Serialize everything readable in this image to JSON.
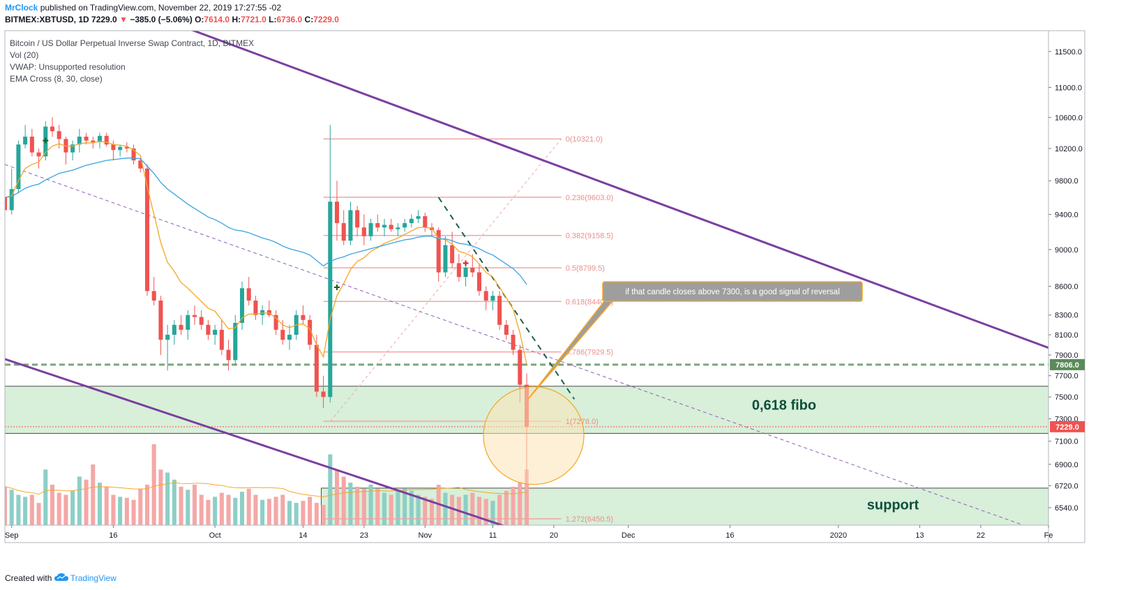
{
  "header": {
    "author": "MrClock",
    "published_text": "published on TradingView.com, November 22, 2019 17:27:55 -02",
    "symbol": "BITMEX:XBTUSD, 1D",
    "last": "7229.0",
    "change": "−385.0 (−5.06%)",
    "ohlc_labels": [
      "O:",
      "H:",
      "L:",
      "C:"
    ],
    "ohlc_values": [
      "7614.0",
      "7721.0",
      "6736.0",
      "7229.0"
    ]
  },
  "legend": {
    "title": "Bitcoin / US Dollar Perpetual Inverse Swap Contract, 1D, BITMEX",
    "vol": "Vol (20)",
    "vwap": "VWAP: Unsupported resolution",
    "ema": "EMA Cross (8, 30, close)"
  },
  "footer": {
    "created": "Created with",
    "brand": "TradingView"
  },
  "colors": {
    "up": "#26a69a",
    "down": "#ef5350",
    "ema_fast": "#f5a623",
    "ema_slow": "#3aa3e3",
    "channel": "#7b3fa0",
    "fib": "#f2a5a5",
    "zone": "#d8efd9",
    "dashed_level": "#7aa77a",
    "callout_bg": "#9e9e9e",
    "callout_border": "#f5a623"
  },
  "chart_data": {
    "type": "candlestick",
    "y_axis": {
      "scale": "log",
      "range": [
        6400,
        11800
      ],
      "ticks": [
        "11500.0",
        "11000.0",
        "10600.0",
        "10200.0",
        "9800.0",
        "9400.0",
        "9000.0",
        "8600.0",
        "8300.0",
        "8100.0",
        "7900.0",
        "7700.0",
        "7500.0",
        "7300.0",
        "7100.0",
        "6900.0",
        "6720.0",
        "6540.0"
      ],
      "tick_values": [
        11500,
        11000,
        10600,
        10200,
        9800,
        9400,
        9000,
        8600,
        8300,
        8100,
        7900,
        7700,
        7500,
        7300,
        7100,
        6900,
        6720,
        6540
      ]
    },
    "x_axis": {
      "start": "2019-08-31",
      "end": "2020-02-01",
      "labels": [
        {
          "date": "2019-09-01",
          "text": "Sep"
        },
        {
          "date": "2019-09-16",
          "text": "16"
        },
        {
          "date": "2019-10-01",
          "text": "Oct"
        },
        {
          "date": "2019-10-14",
          "text": "14"
        },
        {
          "date": "2019-10-23",
          "text": "23"
        },
        {
          "date": "2019-11-01",
          "text": "Nov"
        },
        {
          "date": "2019-11-11",
          "text": "11"
        },
        {
          "date": "2019-11-20",
          "text": "20"
        },
        {
          "date": "2019-12-01",
          "text": "Dec"
        },
        {
          "date": "2019-12-16",
          "text": "16"
        },
        {
          "date": "2020-01-01",
          "text": "2020"
        },
        {
          "date": "2020-01-13",
          "text": "13"
        },
        {
          "date": "2020-01-22",
          "text": "22"
        },
        {
          "date": "2020-02-01",
          "text": "Fe"
        }
      ]
    },
    "candles_start": "2019-08-31",
    "candles": [
      [
        9600,
        9650,
        9350,
        9450
      ],
      [
        9450,
        9950,
        9400,
        9700
      ],
      [
        9700,
        10300,
        9650,
        10250
      ],
      [
        10250,
        10500,
        10200,
        10350
      ],
      [
        10350,
        10450,
        10100,
        10150
      ],
      [
        10150,
        10200,
        9950,
        10100
      ],
      [
        10100,
        10550,
        10050,
        10480
      ],
      [
        10480,
        10600,
        10350,
        10420
      ],
      [
        10420,
        10500,
        10200,
        10320
      ],
      [
        10320,
        10350,
        10000,
        10150
      ],
      [
        10150,
        10300,
        10050,
        10250
      ],
      [
        10250,
        10450,
        10150,
        10350
      ],
      [
        10350,
        10400,
        10250,
        10300
      ],
      [
        10300,
        10350,
        10200,
        10280
      ],
      [
        10280,
        10400,
        10200,
        10360
      ],
      [
        10360,
        10400,
        10220,
        10250
      ],
      [
        10250,
        10300,
        10050,
        10180
      ],
      [
        10180,
        10250,
        10100,
        10220
      ],
      [
        10220,
        10280,
        10150,
        10200
      ],
      [
        10200,
        10250,
        10000,
        10050
      ],
      [
        10050,
        10100,
        9900,
        9950
      ],
      [
        9950,
        10000,
        8500,
        8550
      ],
      [
        8550,
        8700,
        8400,
        8450
      ],
      [
        8450,
        8500,
        7900,
        8050
      ],
      [
        8050,
        8200,
        7750,
        8100
      ],
      [
        8100,
        8250,
        8000,
        8200
      ],
      [
        8200,
        8300,
        8100,
        8150
      ],
      [
        8150,
        8350,
        8050,
        8300
      ],
      [
        8300,
        8400,
        8200,
        8280
      ],
      [
        8280,
        8350,
        8150,
        8200
      ],
      [
        8200,
        8250,
        8050,
        8100
      ],
      [
        8100,
        8200,
        8000,
        8150
      ],
      [
        8150,
        8250,
        7900,
        7950
      ],
      [
        7950,
        8050,
        7750,
        7850
      ],
      [
        7850,
        8300,
        7800,
        8220
      ],
      [
        8220,
        8650,
        8150,
        8580
      ],
      [
        8580,
        8700,
        8400,
        8450
      ],
      [
        8450,
        8500,
        8250,
        8300
      ],
      [
        8300,
        8400,
        8200,
        8350
      ],
      [
        8350,
        8450,
        8280,
        8300
      ],
      [
        8300,
        8350,
        8100,
        8150
      ],
      [
        8150,
        8250,
        8000,
        8050
      ],
      [
        8050,
        8200,
        7950,
        8100
      ],
      [
        8100,
        8350,
        8050,
        8300
      ],
      [
        8300,
        8400,
        8200,
        8250
      ],
      [
        8250,
        8300,
        7950,
        8000
      ],
      [
        8000,
        8100,
        7500,
        7550
      ],
      [
        7550,
        7700,
        7400,
        7500
      ],
      [
        7500,
        10500,
        7450,
        9550
      ],
      [
        9550,
        9800,
        9100,
        9300
      ],
      [
        9300,
        9450,
        9050,
        9100
      ],
      [
        9100,
        9550,
        9050,
        9450
      ],
      [
        9450,
        9500,
        9150,
        9250
      ],
      [
        9250,
        9400,
        9050,
        9150
      ],
      [
        9150,
        9350,
        9100,
        9300
      ],
      [
        9300,
        9400,
        9200,
        9250
      ],
      [
        9250,
        9350,
        9150,
        9280
      ],
      [
        9280,
        9350,
        9200,
        9230
      ],
      [
        9230,
        9300,
        9150,
        9250
      ],
      [
        9250,
        9350,
        9200,
        9300
      ],
      [
        9300,
        9400,
        9250,
        9350
      ],
      [
        9350,
        9450,
        9300,
        9380
      ],
      [
        9380,
        9420,
        9200,
        9250
      ],
      [
        9250,
        9300,
        9150,
        9220
      ],
      [
        9220,
        9250,
        8650,
        8750
      ],
      [
        8750,
        9150,
        8700,
        9050
      ],
      [
        9050,
        9200,
        8800,
        8850
      ],
      [
        8850,
        8950,
        8650,
        8700
      ],
      [
        8700,
        8850,
        8600,
        8800
      ],
      [
        8800,
        8950,
        8700,
        8750
      ],
      [
        8750,
        8850,
        8500,
        8550
      ],
      [
        8550,
        8600,
        8350,
        8450
      ],
      [
        8450,
        8550,
        8350,
        8500
      ],
      [
        8500,
        8550,
        8150,
        8200
      ],
      [
        8200,
        8250,
        8050,
        8100
      ],
      [
        8100,
        8150,
        7900,
        7950
      ],
      [
        7950,
        8000,
        7450,
        7614
      ],
      [
        7614,
        7721,
        6736,
        7229
      ]
    ],
    "ema_fast": [
      9600,
      9620,
      9800,
      9950,
      10000,
      10030,
      10150,
      10230,
      10260,
      10230,
      10230,
      10260,
      10270,
      10270,
      10290,
      10280,
      10250,
      10240,
      10230,
      10180,
      10110,
      9730,
      9400,
      9080,
      8860,
      8760,
      8640,
      8580,
      8510,
      8440,
      8370,
      8340,
      8250,
      8160,
      8170,
      8270,
      8310,
      8310,
      8320,
      8320,
      8270,
      8200,
      8170,
      8200,
      8210,
      8160,
      8000,
      7880,
      8260,
      8500,
      8630,
      8780,
      8870,
      8910,
      8980,
      9020,
      9070,
      9100,
      9130,
      9170,
      9210,
      9250,
      9250,
      9240,
      9130,
      9110,
      9060,
      8980,
      8960,
      8920,
      8840,
      8750,
      8700,
      8590,
      8480,
      8360,
      8120,
      7810
    ],
    "ema_slow": [
      9600,
      9610,
      9660,
      9710,
      9740,
      9760,
      9810,
      9850,
      9890,
      9910,
      9930,
      9960,
      9990,
      10010,
      10030,
      10050,
      10060,
      10070,
      10080,
      10080,
      10070,
      9980,
      9890,
      9780,
      9700,
      9640,
      9580,
      9520,
      9470,
      9420,
      9370,
      9340,
      9300,
      9250,
      9220,
      9210,
      9190,
      9160,
      9130,
      9110,
      9080,
      9040,
      9010,
      8990,
      8970,
      8940,
      8880,
      8820,
      8870,
      8900,
      8920,
      8950,
      8970,
      8990,
      9010,
      9030,
      9050,
      9070,
      9090,
      9110,
      9120,
      9140,
      9150,
      9150,
      9120,
      9120,
      9100,
      9070,
      9060,
      9040,
      9010,
      8970,
      8940,
      8890,
      8840,
      8790,
      8720,
      8620
    ],
    "volume_ylim": [
      0,
      100
    ],
    "volume": [
      38,
      35,
      30,
      28,
      30,
      22,
      55,
      40,
      32,
      30,
      34,
      48,
      45,
      60,
      42,
      38,
      30,
      28,
      27,
      25,
      36,
      40,
      80,
      55,
      52,
      45,
      38,
      35,
      40,
      30,
      25,
      28,
      32,
      30,
      27,
      33,
      36,
      30,
      25,
      26,
      28,
      30,
      24,
      22,
      24,
      28,
      22,
      20,
      70,
      55,
      48,
      42,
      38,
      36,
      40,
      36,
      32,
      30,
      34,
      36,
      34,
      30,
      28,
      26,
      40,
      32,
      30,
      28,
      30,
      32,
      28,
      26,
      24,
      30,
      34,
      38,
      42,
      55
    ],
    "fib_levels": [
      {
        "value": 10321.0,
        "label": "0(10321.0)"
      },
      {
        "value": 9603.0,
        "label": "0.236(9603.0)"
      },
      {
        "value": 9158.5,
        "label": "0.382(9158.5)"
      },
      {
        "value": 8799.5,
        "label": "0.5(8799.5)"
      },
      {
        "value": 8440.5,
        "label": "0.618(8440.5)"
      },
      {
        "value": 7929.5,
        "label": "0.786(7929.5)"
      },
      {
        "value": 7278.0,
        "label": "1(7278.0)"
      },
      {
        "value": 6450.5,
        "label": "1.272(6450.5)"
      }
    ],
    "zones": [
      {
        "label": "0,618 fibo",
        "low": 7170,
        "high": 7600
      },
      {
        "label": "support",
        "low": 6400,
        "high": 6700
      }
    ],
    "dashed_level": {
      "value": 7806.0,
      "label": "7806.0"
    },
    "last_price": {
      "value": 7229.0,
      "label": "7229.0"
    },
    "annotation": "if that candle closes above 7300, is a good signal of reversal"
  }
}
